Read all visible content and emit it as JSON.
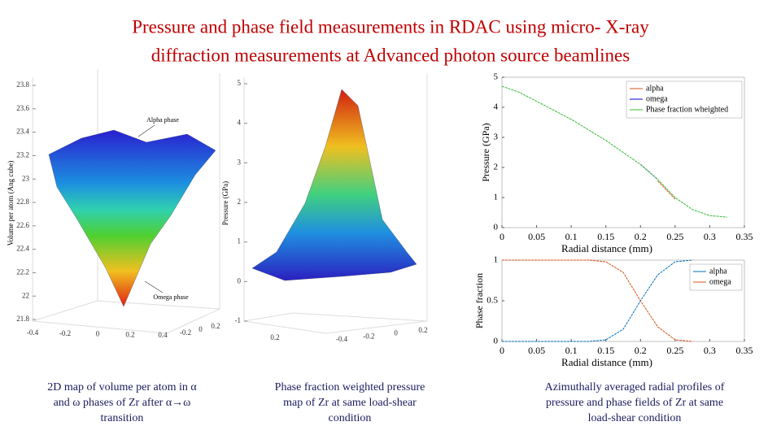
{
  "slide": {
    "title_lines": [
      "Pressure and phase field measurements in RDAC using micro- X-ray",
      "diffraction measurements at Advanced photon source beamlines"
    ],
    "captions": [
      [
        "2D map of volume per atom in α",
        "and ω phases of Zr after α→ω",
        "transition"
      ],
      [
        "Phase fraction weighted pressure",
        "map of Zr at same load-shear",
        "condition"
      ],
      [
        "Azimuthally averaged radial profiles of",
        "pressure and phase fields of Zr at same",
        "load-shear condition"
      ]
    ]
  },
  "chart_data": [
    {
      "type": "surface",
      "zlabel": "Volume per atom (Ang cube)",
      "zlim": [
        21.8,
        23.8
      ],
      "zticks": [
        21.8,
        22,
        22.2,
        22.4,
        22.6,
        22.8,
        23,
        23.2,
        23.4,
        23.6,
        23.8
      ],
      "xlim": [
        -0.4,
        0.4
      ],
      "xticks": [
        -0.4,
        -0.2,
        0,
        0.2,
        0.4
      ],
      "ylim": [
        -0.2,
        0.2
      ],
      "yticks": [
        -0.2,
        0,
        0.2
      ],
      "annotations": [
        "Alpha phase",
        "Omega phase"
      ]
    },
    {
      "type": "surface",
      "zlabel": "Pressure (GPa)",
      "zlim": [
        -1,
        5
      ],
      "zticks": [
        -1,
        0,
        1,
        2,
        3,
        4,
        5
      ],
      "xlim": [
        0,
        0.2
      ],
      "xticks": [
        0.2
      ],
      "ylim": [
        -0.4,
        0.2
      ],
      "yticks": [
        -0.4,
        -0.2,
        0,
        0.2
      ]
    },
    {
      "type": "line",
      "ylabel": "Pressure (GPa)",
      "xlabel": "Radial distance (mm)",
      "xlim": [
        0,
        0.35
      ],
      "xticks": [
        0,
        0.05,
        0.1,
        0.15,
        0.2,
        0.25,
        0.3,
        0.35
      ],
      "ylim": [
        0,
        5
      ],
      "yticks": [
        0,
        1,
        2,
        3,
        4,
        5
      ],
      "x": [
        0,
        0.025,
        0.05,
        0.075,
        0.1,
        0.125,
        0.15,
        0.175,
        0.2,
        0.225,
        0.25,
        0.275,
        0.3,
        0.325
      ],
      "series": [
        {
          "name": "alpha",
          "color": "#d95319",
          "values": [
            null,
            null,
            null,
            null,
            null,
            null,
            null,
            null,
            null,
            1.55,
            0.95,
            null,
            null,
            null
          ]
        },
        {
          "name": "omega",
          "color": "#0000cc",
          "values": [
            null,
            null,
            null,
            null,
            null,
            null,
            null,
            null,
            2.1,
            1.6,
            null,
            null,
            null,
            null
          ]
        },
        {
          "name": "Phase fraction wheighted",
          "color": "#33bb33",
          "values": [
            4.7,
            4.5,
            4.2,
            3.9,
            3.6,
            3.25,
            2.9,
            2.5,
            2.1,
            1.6,
            1.0,
            0.6,
            0.4,
            0.35
          ]
        }
      ]
    },
    {
      "type": "line",
      "ylabel": "Phase fraction",
      "xlabel": "Radial distance (mm)",
      "xlim": [
        0,
        0.35
      ],
      "xticks": [
        0,
        0.05,
        0.1,
        0.15,
        0.2,
        0.25,
        0.3,
        0.35
      ],
      "ylim": [
        0,
        1
      ],
      "yticks": [
        0,
        0.5,
        1
      ],
      "x": [
        0,
        0.025,
        0.05,
        0.075,
        0.1,
        0.125,
        0.15,
        0.175,
        0.2,
        0.225,
        0.25,
        0.275
      ],
      "series": [
        {
          "name": "alpha",
          "color": "#0072bd",
          "values": [
            0,
            0,
            0,
            0,
            0,
            0,
            0.02,
            0.15,
            0.5,
            0.82,
            0.98,
            1
          ]
        },
        {
          "name": "omega",
          "color": "#d95319",
          "values": [
            1,
            1,
            1,
            1,
            1,
            1,
            0.98,
            0.85,
            0.5,
            0.18,
            0.02,
            0
          ]
        }
      ]
    }
  ]
}
